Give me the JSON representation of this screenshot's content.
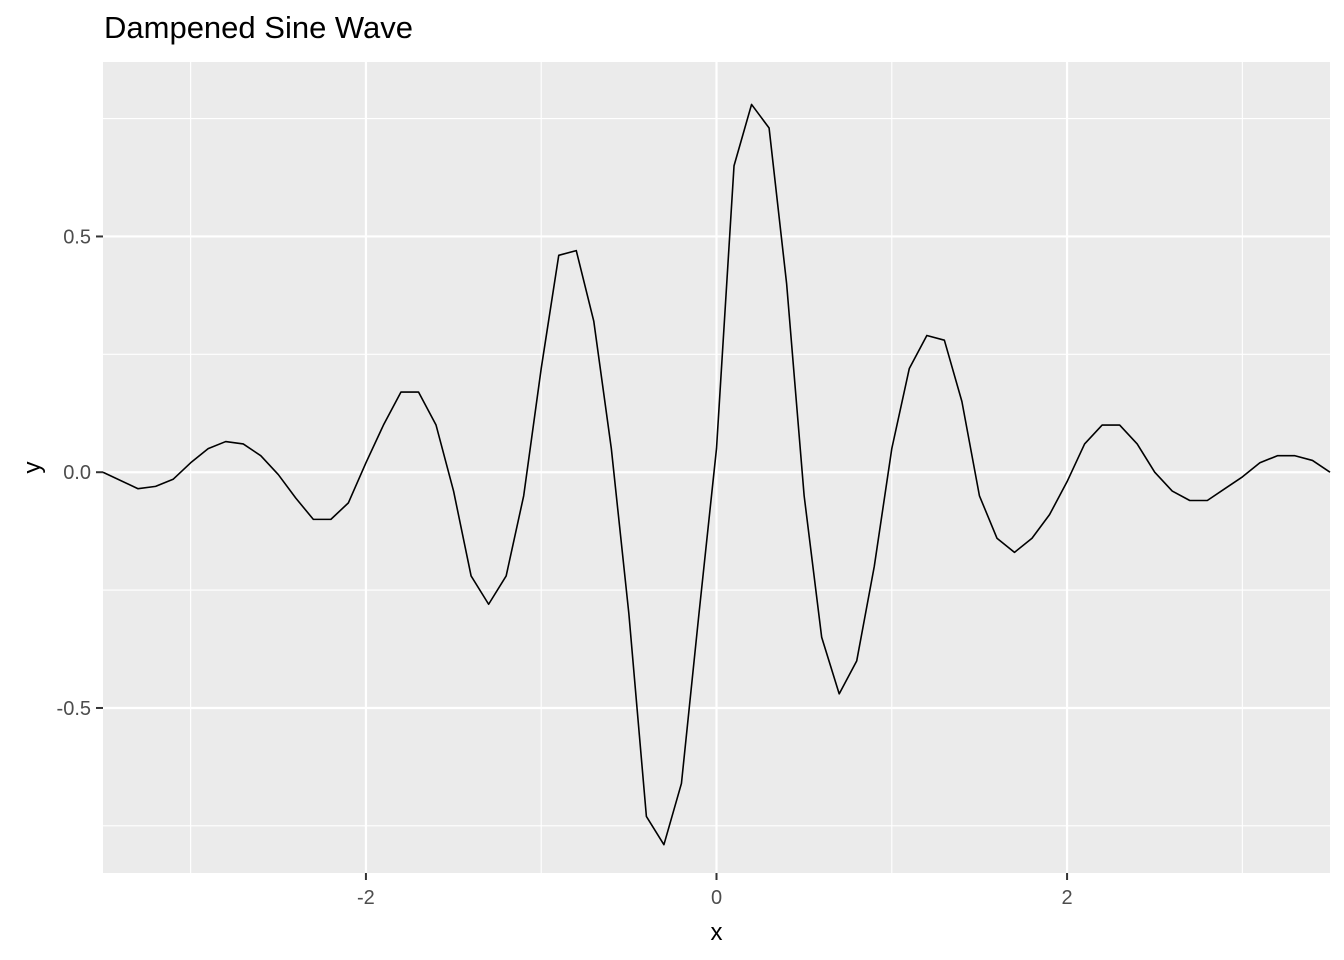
{
  "chart_data": {
    "type": "line",
    "title": "Dampened Sine Wave",
    "xlabel": "x",
    "ylabel": "y",
    "xlim": [
      -3.5,
      3.5
    ],
    "ylim": [
      -0.85,
      0.87
    ],
    "x_major_ticks": [
      -2,
      0,
      2
    ],
    "x_minor_ticks": [
      -3,
      -1,
      1,
      3
    ],
    "y_major_ticks": [
      -0.5,
      0.0,
      0.5
    ],
    "y_minor_ticks": [
      -0.75,
      -0.25,
      0.25,
      0.75
    ],
    "x_tick_labels": [
      "-2",
      "0",
      "2"
    ],
    "y_tick_labels": [
      "-0.5",
      "0.0",
      "0.5"
    ],
    "grid": true,
    "colors": {
      "panel": "#ebebeb",
      "grid": "#ffffff",
      "line": "#000000",
      "tick_text": "#4d4d4d",
      "tick_mark": "#333333"
    },
    "series": [
      {
        "x": [
          -3.5,
          -3.3,
          -3.2,
          -3.1,
          -3.0,
          -2.9,
          -2.8,
          -2.7,
          -2.6,
          -2.5,
          -2.4,
          -2.3,
          -2.2,
          -2.1,
          -2.0,
          -1.9,
          -1.8,
          -1.7,
          -1.6,
          -1.5,
          -1.4,
          -1.3,
          -1.2,
          -1.1,
          -1.0,
          -0.9,
          -0.8,
          -0.7,
          -0.6,
          -0.5,
          -0.4,
          -0.3,
          -0.2,
          -0.1,
          0.0,
          0.1,
          0.2,
          0.3,
          0.4,
          0.5,
          0.6,
          0.7,
          0.8,
          0.9,
          1.0,
          1.1,
          1.2,
          1.3,
          1.4,
          1.5,
          1.6,
          1.7,
          1.8,
          1.9,
          2.0,
          2.1,
          2.2,
          2.3,
          2.4,
          2.5,
          2.6,
          2.7,
          2.8,
          2.9,
          3.0,
          3.1,
          3.2,
          3.3,
          3.4,
          3.5
        ],
        "y": [
          0.0,
          -0.035,
          -0.03,
          -0.015,
          0.02,
          0.05,
          0.065,
          0.06,
          0.035,
          -0.005,
          -0.055,
          -0.1,
          -0.1,
          -0.065,
          0.02,
          0.1,
          0.17,
          0.17,
          0.1,
          -0.04,
          -0.22,
          -0.28,
          -0.22,
          -0.05,
          0.22,
          0.46,
          0.47,
          0.32,
          0.05,
          -0.3,
          -0.73,
          -0.79,
          -0.66,
          -0.3,
          0.05,
          0.65,
          0.78,
          0.73,
          0.4,
          -0.05,
          -0.35,
          -0.47,
          -0.4,
          -0.2,
          0.05,
          0.22,
          0.29,
          0.28,
          0.15,
          -0.05,
          -0.14,
          -0.17,
          -0.14,
          -0.09,
          -0.02,
          0.06,
          0.1,
          0.1,
          0.06,
          0.0,
          -0.04,
          -0.06,
          -0.06,
          -0.035,
          -0.01,
          0.02,
          0.035,
          0.035,
          0.025,
          0.0
        ]
      }
    ]
  }
}
